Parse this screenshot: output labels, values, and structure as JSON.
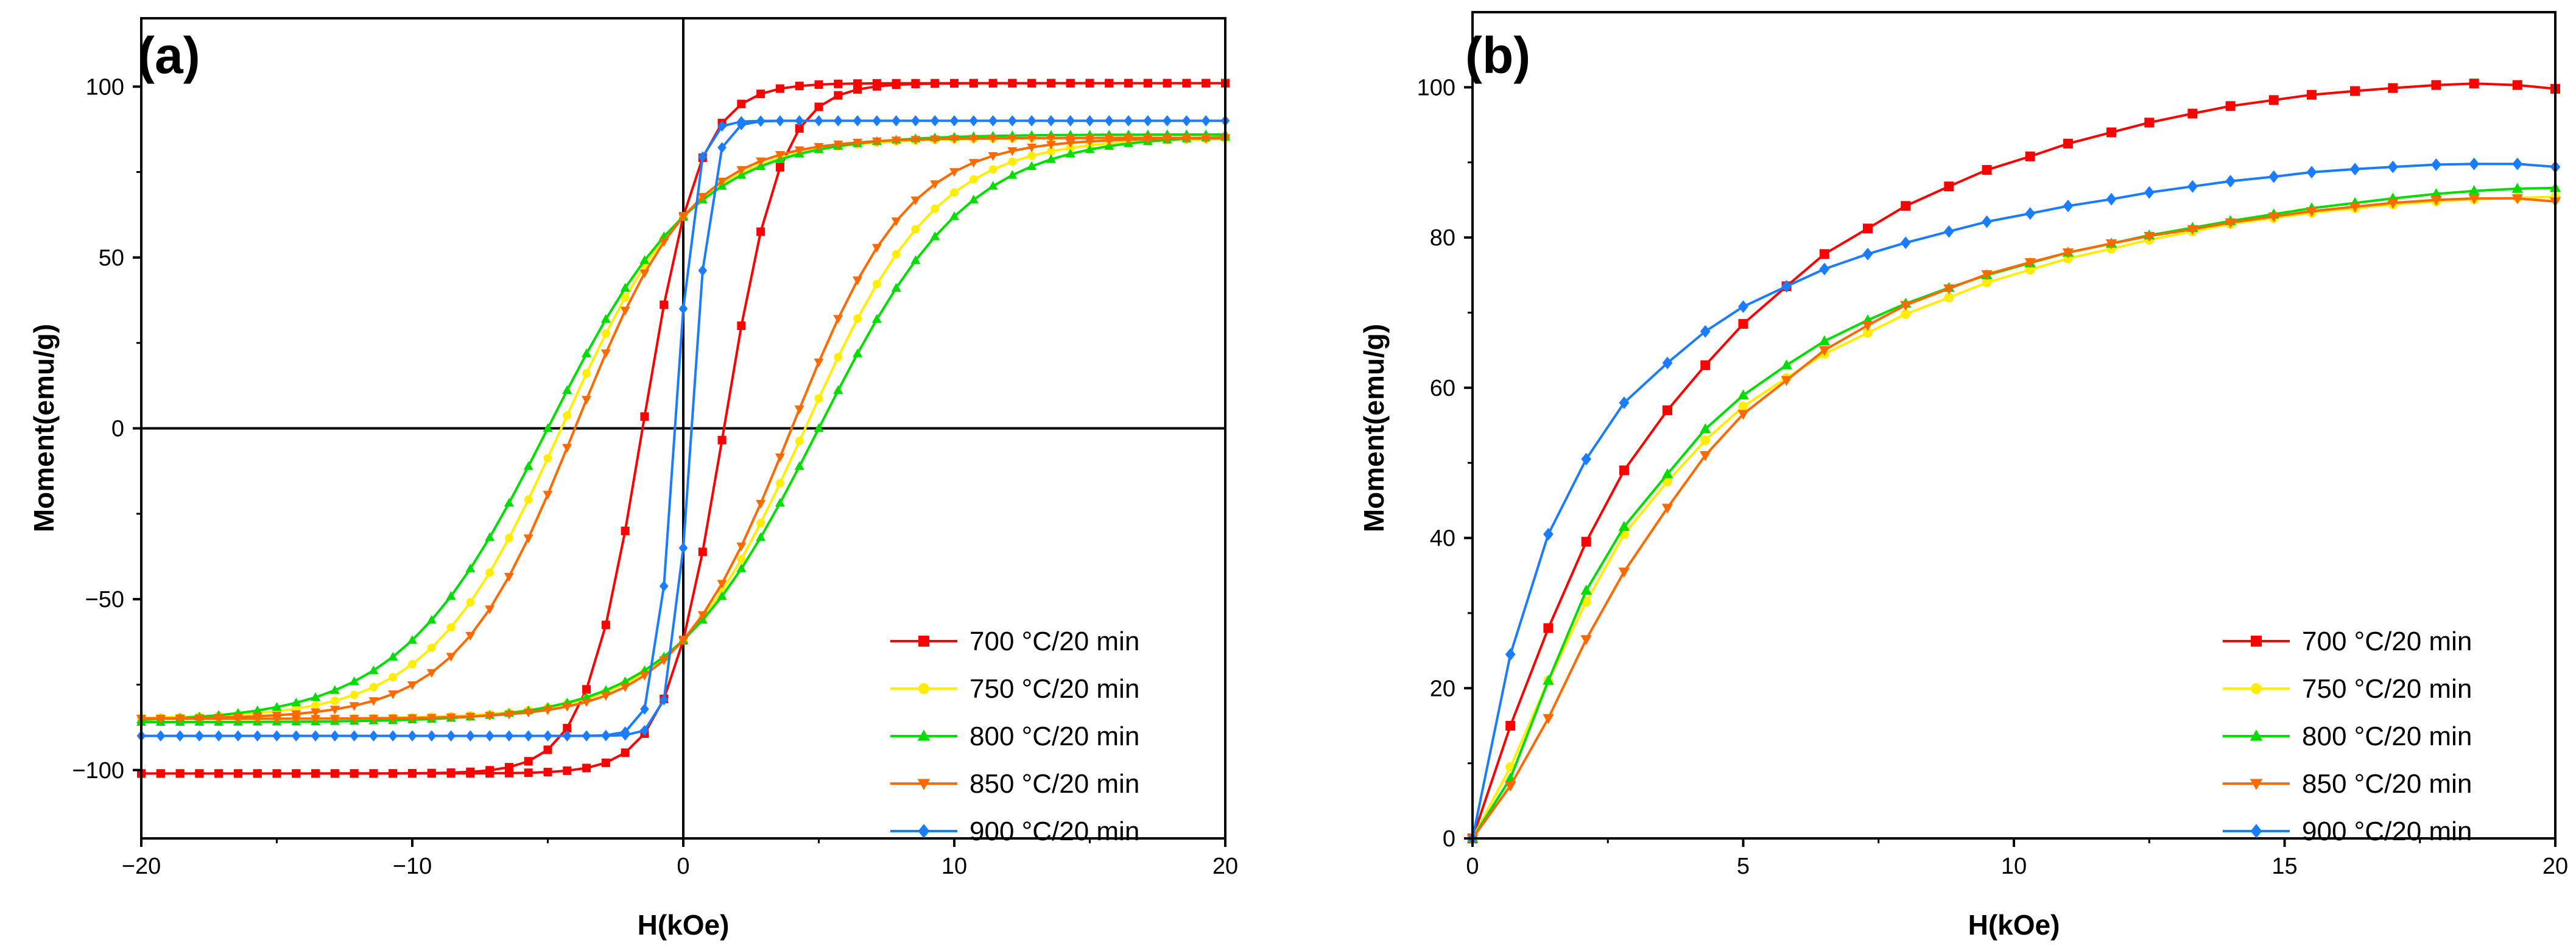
{
  "colors": {
    "700": "#ff0000",
    "750": "#ffee00",
    "800": "#00dd00",
    "850": "#ff6a00",
    "900": "#1a7cff",
    "axis": "#000000"
  },
  "chart_data": [
    {
      "panel": "(a)",
      "type": "line",
      "xlabel": "H(kOe)",
      "ylabel": "Moment(emu/g)",
      "xlim": [
        -20,
        20
      ],
      "ylim": [
        -120,
        120
      ],
      "xticks": [
        -20,
        -10,
        0,
        10,
        20
      ],
      "xtick_labels": [
        "−20",
        "−10",
        "0",
        "10",
        "20"
      ],
      "yticks": [
        -100,
        -50,
        0,
        50,
        100
      ],
      "ytick_labels": [
        "−100",
        "−50",
        "0",
        "50",
        "100"
      ],
      "zero_lines": true,
      "legend_position": "bottom-right",
      "loop_description": "each series is a hysteresis loop: upper branch (field decreasing from 20 to -20) and lower branch (field increasing from -20 to 20) with the listed saturation Ms, remanence Mr and coercivity Hc",
      "series": [
        {
          "name": "700 °C/20 min",
          "color_key": "700",
          "marker": "square",
          "Ms": 101,
          "Mr": 62,
          "Hc": 1.5
        },
        {
          "name": "750 °C/20 min",
          "color_key": "750",
          "marker": "circle",
          "Ms": 85,
          "Mr": 62,
          "Hc": 4.5
        },
        {
          "name": "800 °C/20 min",
          "color_key": "800",
          "marker": "triangle-up",
          "Ms": 86,
          "Mr": 62,
          "Hc": 5.0
        },
        {
          "name": "850 °C/20 min",
          "color_key": "850",
          "marker": "triangle-down",
          "Ms": 85,
          "Mr": 62,
          "Hc": 4.0
        },
        {
          "name": "900 °C/20 min",
          "color_key": "900",
          "marker": "diamond",
          "Ms": 90,
          "Mr": 35,
          "Hc": 0.3
        }
      ]
    },
    {
      "panel": "(b)",
      "type": "line",
      "xlabel": "H(kOe)",
      "ylabel": "Moment(emu/g)",
      "xlim": [
        0,
        20
      ],
      "ylim": [
        0,
        110
      ],
      "xticks": [
        0,
        5,
        10,
        15,
        20
      ],
      "xtick_labels": [
        "0",
        "5",
        "10",
        "15",
        "20"
      ],
      "yticks": [
        0,
        20,
        40,
        60,
        80,
        100
      ],
      "ytick_labels": [
        "0",
        "20",
        "40",
        "60",
        "80",
        "100"
      ],
      "legend_position": "bottom-right",
      "series": [
        {
          "name": "700 °C/20 min",
          "color_key": "700",
          "marker": "square",
          "x": [
            0,
            0.7,
            1.4,
            2.1,
            2.8,
            3.6,
            4.3,
            5.0,
            5.8,
            6.5,
            7.3,
            8.0,
            8.8,
            9.5,
            10.3,
            11.0,
            11.8,
            12.5,
            13.3,
            14.0,
            14.8,
            15.5,
            16.3,
            17.0,
            17.8,
            18.5,
            19.3,
            20.0
          ],
          "y": [
            0,
            15,
            28,
            39.5,
            49,
            57,
            63,
            68.5,
            73.5,
            77.8,
            81.2,
            84.2,
            86.8,
            89,
            90.8,
            92.5,
            94,
            95.3,
            96.5,
            97.5,
            98.3,
            99,
            99.5,
            99.9,
            100.3,
            100.5,
            100.3,
            99.8
          ]
        },
        {
          "name": "750 °C/20 min",
          "color_key": "750",
          "marker": "circle",
          "x": [
            0,
            0.7,
            1.4,
            2.1,
            2.8,
            3.6,
            4.3,
            5.0,
            5.8,
            6.5,
            7.3,
            8.0,
            8.8,
            9.5,
            10.3,
            11.0,
            11.8,
            12.5,
            13.3,
            14.0,
            14.8,
            15.5,
            16.3,
            17.0,
            17.8,
            18.5,
            19.3,
            20.0
          ],
          "y": [
            0,
            9.5,
            21,
            31.5,
            40.5,
            47.5,
            53,
            57.5,
            61.3,
            64.5,
            67.3,
            69.8,
            72,
            74,
            75.7,
            77.2,
            78.5,
            79.7,
            80.8,
            81.8,
            82.6,
            83.3,
            83.9,
            84.4,
            84.8,
            85.1,
            85.3,
            85.4
          ]
        },
        {
          "name": "800 °C/20 min",
          "color_key": "800",
          "marker": "triangle-up",
          "x": [
            0,
            0.7,
            1.4,
            2.1,
            2.8,
            3.6,
            4.3,
            5.0,
            5.8,
            6.5,
            7.3,
            8.0,
            8.8,
            9.5,
            10.3,
            11.0,
            11.8,
            12.5,
            13.3,
            14.0,
            14.8,
            15.5,
            16.3,
            17.0,
            17.8,
            18.5,
            19.3,
            20.0
          ],
          "y": [
            0,
            8,
            21,
            33,
            41.5,
            48.5,
            54.5,
            59,
            63,
            66.2,
            69,
            71.2,
            73.3,
            75,
            76.6,
            78,
            79.2,
            80.3,
            81.3,
            82.2,
            83.1,
            83.9,
            84.6,
            85.2,
            85.8,
            86.2,
            86.5,
            86.6
          ]
        },
        {
          "name": "850 °C/20 min",
          "color_key": "850",
          "marker": "triangle-down",
          "x": [
            0,
            0.7,
            1.4,
            2.1,
            2.8,
            3.6,
            4.3,
            5.0,
            5.8,
            6.5,
            7.3,
            8.0,
            8.8,
            9.5,
            10.3,
            11.0,
            11.8,
            12.5,
            13.3,
            14.0,
            14.8,
            15.5,
            16.3,
            17.0,
            17.8,
            18.5,
            19.3,
            20.0
          ],
          "y": [
            0,
            7,
            16,
            26.5,
            35.5,
            44,
            51,
            56.5,
            61,
            65,
            68.3,
            71,
            73.2,
            75.1,
            76.7,
            78,
            79.2,
            80.2,
            81.1,
            82,
            82.8,
            83.5,
            84.1,
            84.6,
            85,
            85.2,
            85.2,
            84.8
          ]
        },
        {
          "name": "900 °C/20 min",
          "color_key": "900",
          "marker": "diamond",
          "x": [
            0,
            0.7,
            1.4,
            2.1,
            2.8,
            3.6,
            4.3,
            5.0,
            5.8,
            6.5,
            7.3,
            8.0,
            8.8,
            9.5,
            10.3,
            11.0,
            11.8,
            12.5,
            13.3,
            14.0,
            14.8,
            15.5,
            16.3,
            17.0,
            17.8,
            18.5,
            19.3,
            20.0
          ],
          "y": [
            0,
            24.5,
            40.5,
            50.5,
            58,
            63.3,
            67.5,
            70.8,
            73.5,
            75.8,
            77.8,
            79.3,
            80.8,
            82.1,
            83.2,
            84.2,
            85.1,
            86,
            86.8,
            87.5,
            88.1,
            88.7,
            89.1,
            89.4,
            89.7,
            89.8,
            89.8,
            89.4
          ]
        }
      ]
    }
  ]
}
